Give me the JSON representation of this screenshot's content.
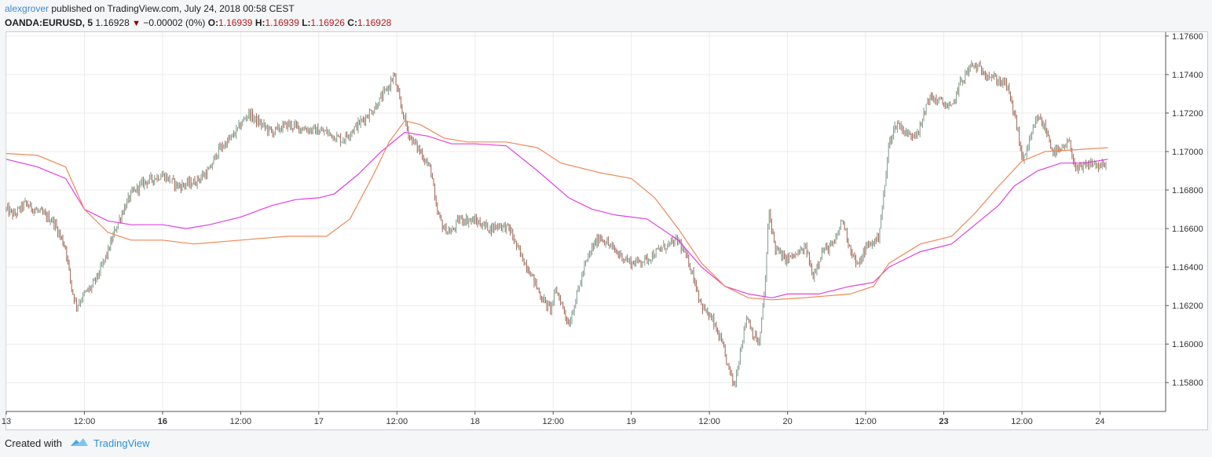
{
  "header": {
    "author": "alexgrover",
    "published_text": "published on TradingView.com, July 24, 2018 00:58 CEST",
    "symbol": "OANDA:EURUSD, 5",
    "last_price": "1.16928",
    "change": "−0.00002 (0%)",
    "open_label": "O:",
    "open": "1.16939",
    "high_label": "H:",
    "high": "1.16939",
    "low_label": "L:",
    "low": "1.16926",
    "close_label": "C:",
    "close": "1.16928"
  },
  "footer": {
    "created_with": "Created with",
    "brand": "TradingView"
  },
  "colors": {
    "candle_up": "#7f9a8a",
    "candle_down": "#a06454",
    "ma_magenta": "#e040e0",
    "ma_orange": "#f08858",
    "grid": "#ececec"
  },
  "chart_data": {
    "type": "candlestick",
    "symbol": "OANDA:EURUSD",
    "interval": "5",
    "ylim": [
      1.1565,
      1.1762
    ],
    "y_ticks": [
      "1.17600",
      "1.17400",
      "1.17200",
      "1.17000",
      "1.16800",
      "1.16600",
      "1.16400",
      "1.16200",
      "1.16000",
      "1.15800"
    ],
    "y_tick_values": [
      1.176,
      1.174,
      1.172,
      1.17,
      1.168,
      1.166,
      1.164,
      1.162,
      1.16,
      1.158
    ],
    "x_ticks": [
      {
        "label": "13",
        "bold": false,
        "t": 0
      },
      {
        "label": "12:00",
        "bold": false,
        "t": 0.5
      },
      {
        "label": "16",
        "bold": true,
        "t": 1
      },
      {
        "label": "12:00",
        "bold": false,
        "t": 1.5
      },
      {
        "label": "17",
        "bold": false,
        "t": 2
      },
      {
        "label": "12:00",
        "bold": false,
        "t": 2.5
      },
      {
        "label": "18",
        "bold": false,
        "t": 3
      },
      {
        "label": "12:00",
        "bold": false,
        "t": 3.5
      },
      {
        "label": "19",
        "bold": false,
        "t": 4
      },
      {
        "label": "12:00",
        "bold": false,
        "t": 4.5
      },
      {
        "label": "20",
        "bold": false,
        "t": 5
      },
      {
        "label": "12:00",
        "bold": false,
        "t": 5.5
      },
      {
        "label": "23",
        "bold": true,
        "t": 6
      },
      {
        "label": "12:00",
        "bold": false,
        "t": 6.5
      },
      {
        "label": "24",
        "bold": false,
        "t": 7
      }
    ],
    "xlim": [
      0,
      7.42
    ],
    "price_path": [
      [
        0.0,
        1.167
      ],
      [
        0.05,
        1.1667
      ],
      [
        0.12,
        1.1673
      ],
      [
        0.2,
        1.1669
      ],
      [
        0.3,
        1.1664
      ],
      [
        0.38,
        1.165
      ],
      [
        0.42,
        1.1628
      ],
      [
        0.45,
        1.162
      ],
      [
        0.5,
        1.1626
      ],
      [
        0.55,
        1.163
      ],
      [
        0.6,
        1.1638
      ],
      [
        0.65,
        1.1648
      ],
      [
        0.7,
        1.166
      ],
      [
        0.75,
        1.167
      ],
      [
        0.8,
        1.1678
      ],
      [
        0.88,
        1.1684
      ],
      [
        1.0,
        1.1688
      ],
      [
        1.1,
        1.1682
      ],
      [
        1.2,
        1.1684
      ],
      [
        1.3,
        1.169
      ],
      [
        1.35,
        1.17
      ],
      [
        1.45,
        1.1708
      ],
      [
        1.55,
        1.172
      ],
      [
        1.6,
        1.1716
      ],
      [
        1.7,
        1.171
      ],
      [
        1.8,
        1.1714
      ],
      [
        1.9,
        1.1712
      ],
      [
        2.05,
        1.171
      ],
      [
        2.15,
        1.1706
      ],
      [
        2.25,
        1.1714
      ],
      [
        2.35,
        1.1722
      ],
      [
        2.45,
        1.1734
      ],
      [
        2.48,
        1.174
      ],
      [
        2.52,
        1.1725
      ],
      [
        2.58,
        1.1708
      ],
      [
        2.65,
        1.17
      ],
      [
        2.72,
        1.169
      ],
      [
        2.75,
        1.167
      ],
      [
        2.8,
        1.166
      ],
      [
        2.85,
        1.1658
      ],
      [
        2.9,
        1.1665
      ],
      [
        3.0,
        1.1664
      ],
      [
        3.1,
        1.166
      ],
      [
        3.15,
        1.1662
      ],
      [
        3.22,
        1.166
      ],
      [
        3.28,
        1.1648
      ],
      [
        3.35,
        1.1638
      ],
      [
        3.42,
        1.1625
      ],
      [
        3.48,
        1.1618
      ],
      [
        3.52,
        1.1628
      ],
      [
        3.55,
        1.1622
      ],
      [
        3.6,
        1.161
      ],
      [
        3.65,
        1.1625
      ],
      [
        3.7,
        1.164
      ],
      [
        3.75,
        1.165
      ],
      [
        3.8,
        1.1656
      ],
      [
        3.9,
        1.1648
      ],
      [
        4.0,
        1.1642
      ],
      [
        4.1,
        1.1644
      ],
      [
        4.2,
        1.165
      ],
      [
        4.3,
        1.1654
      ],
      [
        4.38,
        1.164
      ],
      [
        4.45,
        1.162
      ],
      [
        4.52,
        1.1612
      ],
      [
        4.58,
        1.16
      ],
      [
        4.62,
        1.1588
      ],
      [
        4.66,
        1.1578
      ],
      [
        4.7,
        1.1598
      ],
      [
        4.74,
        1.1615
      ],
      [
        4.78,
        1.1605
      ],
      [
        4.82,
        1.16
      ],
      [
        4.86,
        1.1635
      ],
      [
        4.88,
        1.167
      ],
      [
        4.92,
        1.165
      ],
      [
        4.98,
        1.1644
      ],
      [
        5.05,
        1.1646
      ],
      [
        5.12,
        1.165
      ],
      [
        5.16,
        1.1635
      ],
      [
        5.22,
        1.1648
      ],
      [
        5.3,
        1.1652
      ],
      [
        5.35,
        1.1665
      ],
      [
        5.4,
        1.165
      ],
      [
        5.45,
        1.164
      ],
      [
        5.5,
        1.165
      ],
      [
        5.58,
        1.1655
      ],
      [
        5.62,
        1.168
      ],
      [
        5.65,
        1.1705
      ],
      [
        5.7,
        1.1715
      ],
      [
        5.78,
        1.1708
      ],
      [
        5.85,
        1.1712
      ],
      [
        5.9,
        1.1728
      ],
      [
        5.98,
        1.1726
      ],
      [
        6.05,
        1.1722
      ],
      [
        6.1,
        1.1735
      ],
      [
        6.18,
        1.1745
      ],
      [
        6.25,
        1.1742
      ],
      [
        6.32,
        1.1738
      ],
      [
        6.4,
        1.1735
      ],
      [
        6.45,
        1.172
      ],
      [
        6.48,
        1.1708
      ],
      [
        6.5,
        1.1695
      ],
      [
        6.55,
        1.1705
      ],
      [
        6.6,
        1.1718
      ],
      [
        6.65,
        1.1712
      ],
      [
        6.7,
        1.17
      ],
      [
        6.75,
        1.17
      ],
      [
        6.8,
        1.1705
      ],
      [
        6.85,
        1.169
      ],
      [
        6.9,
        1.1692
      ],
      [
        6.95,
        1.1694
      ],
      [
        7.0,
        1.1692
      ],
      [
        7.05,
        1.1693
      ]
    ],
    "series": [
      {
        "type": "line",
        "color": "#e040e0",
        "points": [
          [
            0.0,
            1.1696
          ],
          [
            0.2,
            1.1692
          ],
          [
            0.38,
            1.1686
          ],
          [
            0.5,
            1.167
          ],
          [
            0.65,
            1.1664
          ],
          [
            0.8,
            1.1662
          ],
          [
            1.0,
            1.1662
          ],
          [
            1.15,
            1.166
          ],
          [
            1.3,
            1.1662
          ],
          [
            1.5,
            1.1666
          ],
          [
            1.7,
            1.1672
          ],
          [
            1.85,
            1.1675
          ],
          [
            2.0,
            1.1676
          ],
          [
            2.1,
            1.1678
          ],
          [
            2.25,
            1.1688
          ],
          [
            2.4,
            1.17
          ],
          [
            2.55,
            1.171
          ],
          [
            2.7,
            1.1708
          ],
          [
            2.85,
            1.1704
          ],
          [
            3.0,
            1.1704
          ],
          [
            3.2,
            1.1703
          ],
          [
            3.4,
            1.169
          ],
          [
            3.6,
            1.1676
          ],
          [
            3.75,
            1.167
          ],
          [
            3.9,
            1.1667
          ],
          [
            4.1,
            1.1665
          ],
          [
            4.3,
            1.1654
          ],
          [
            4.45,
            1.164
          ],
          [
            4.6,
            1.163
          ],
          [
            4.75,
            1.1626
          ],
          [
            4.9,
            1.1624
          ],
          [
            5.0,
            1.1626
          ],
          [
            5.2,
            1.1626
          ],
          [
            5.4,
            1.163
          ],
          [
            5.55,
            1.1632
          ],
          [
            5.65,
            1.164
          ],
          [
            5.85,
            1.1648
          ],
          [
            6.05,
            1.1652
          ],
          [
            6.2,
            1.1662
          ],
          [
            6.35,
            1.1672
          ],
          [
            6.45,
            1.1682
          ],
          [
            6.6,
            1.169
          ],
          [
            6.75,
            1.1694
          ],
          [
            6.9,
            1.1694
          ],
          [
            7.05,
            1.1696
          ]
        ]
      },
      {
        "type": "line",
        "color": "#f08858",
        "points": [
          [
            0.0,
            1.1699
          ],
          [
            0.2,
            1.1698
          ],
          [
            0.38,
            1.1692
          ],
          [
            0.5,
            1.167
          ],
          [
            0.65,
            1.1658
          ],
          [
            0.8,
            1.1654
          ],
          [
            1.0,
            1.1654
          ],
          [
            1.2,
            1.1652
          ],
          [
            1.5,
            1.1654
          ],
          [
            1.8,
            1.1656
          ],
          [
            2.05,
            1.1656
          ],
          [
            2.2,
            1.1665
          ],
          [
            2.35,
            1.1688
          ],
          [
            2.45,
            1.1705
          ],
          [
            2.55,
            1.1716
          ],
          [
            2.65,
            1.1714
          ],
          [
            2.8,
            1.1707
          ],
          [
            2.95,
            1.1705
          ],
          [
            3.2,
            1.1705
          ],
          [
            3.4,
            1.1702
          ],
          [
            3.55,
            1.1694
          ],
          [
            3.8,
            1.1689
          ],
          [
            4.0,
            1.1686
          ],
          [
            4.15,
            1.1676
          ],
          [
            4.3,
            1.166
          ],
          [
            4.45,
            1.1642
          ],
          [
            4.6,
            1.163
          ],
          [
            4.75,
            1.1624
          ],
          [
            4.9,
            1.1623
          ],
          [
            5.1,
            1.1624
          ],
          [
            5.4,
            1.1626
          ],
          [
            5.55,
            1.163
          ],
          [
            5.65,
            1.1642
          ],
          [
            5.85,
            1.1652
          ],
          [
            6.05,
            1.1656
          ],
          [
            6.2,
            1.1668
          ],
          [
            6.35,
            1.1682
          ],
          [
            6.5,
            1.1695
          ],
          [
            6.65,
            1.17
          ],
          [
            6.85,
            1.1701
          ],
          [
            7.05,
            1.1702
          ]
        ]
      }
    ]
  }
}
